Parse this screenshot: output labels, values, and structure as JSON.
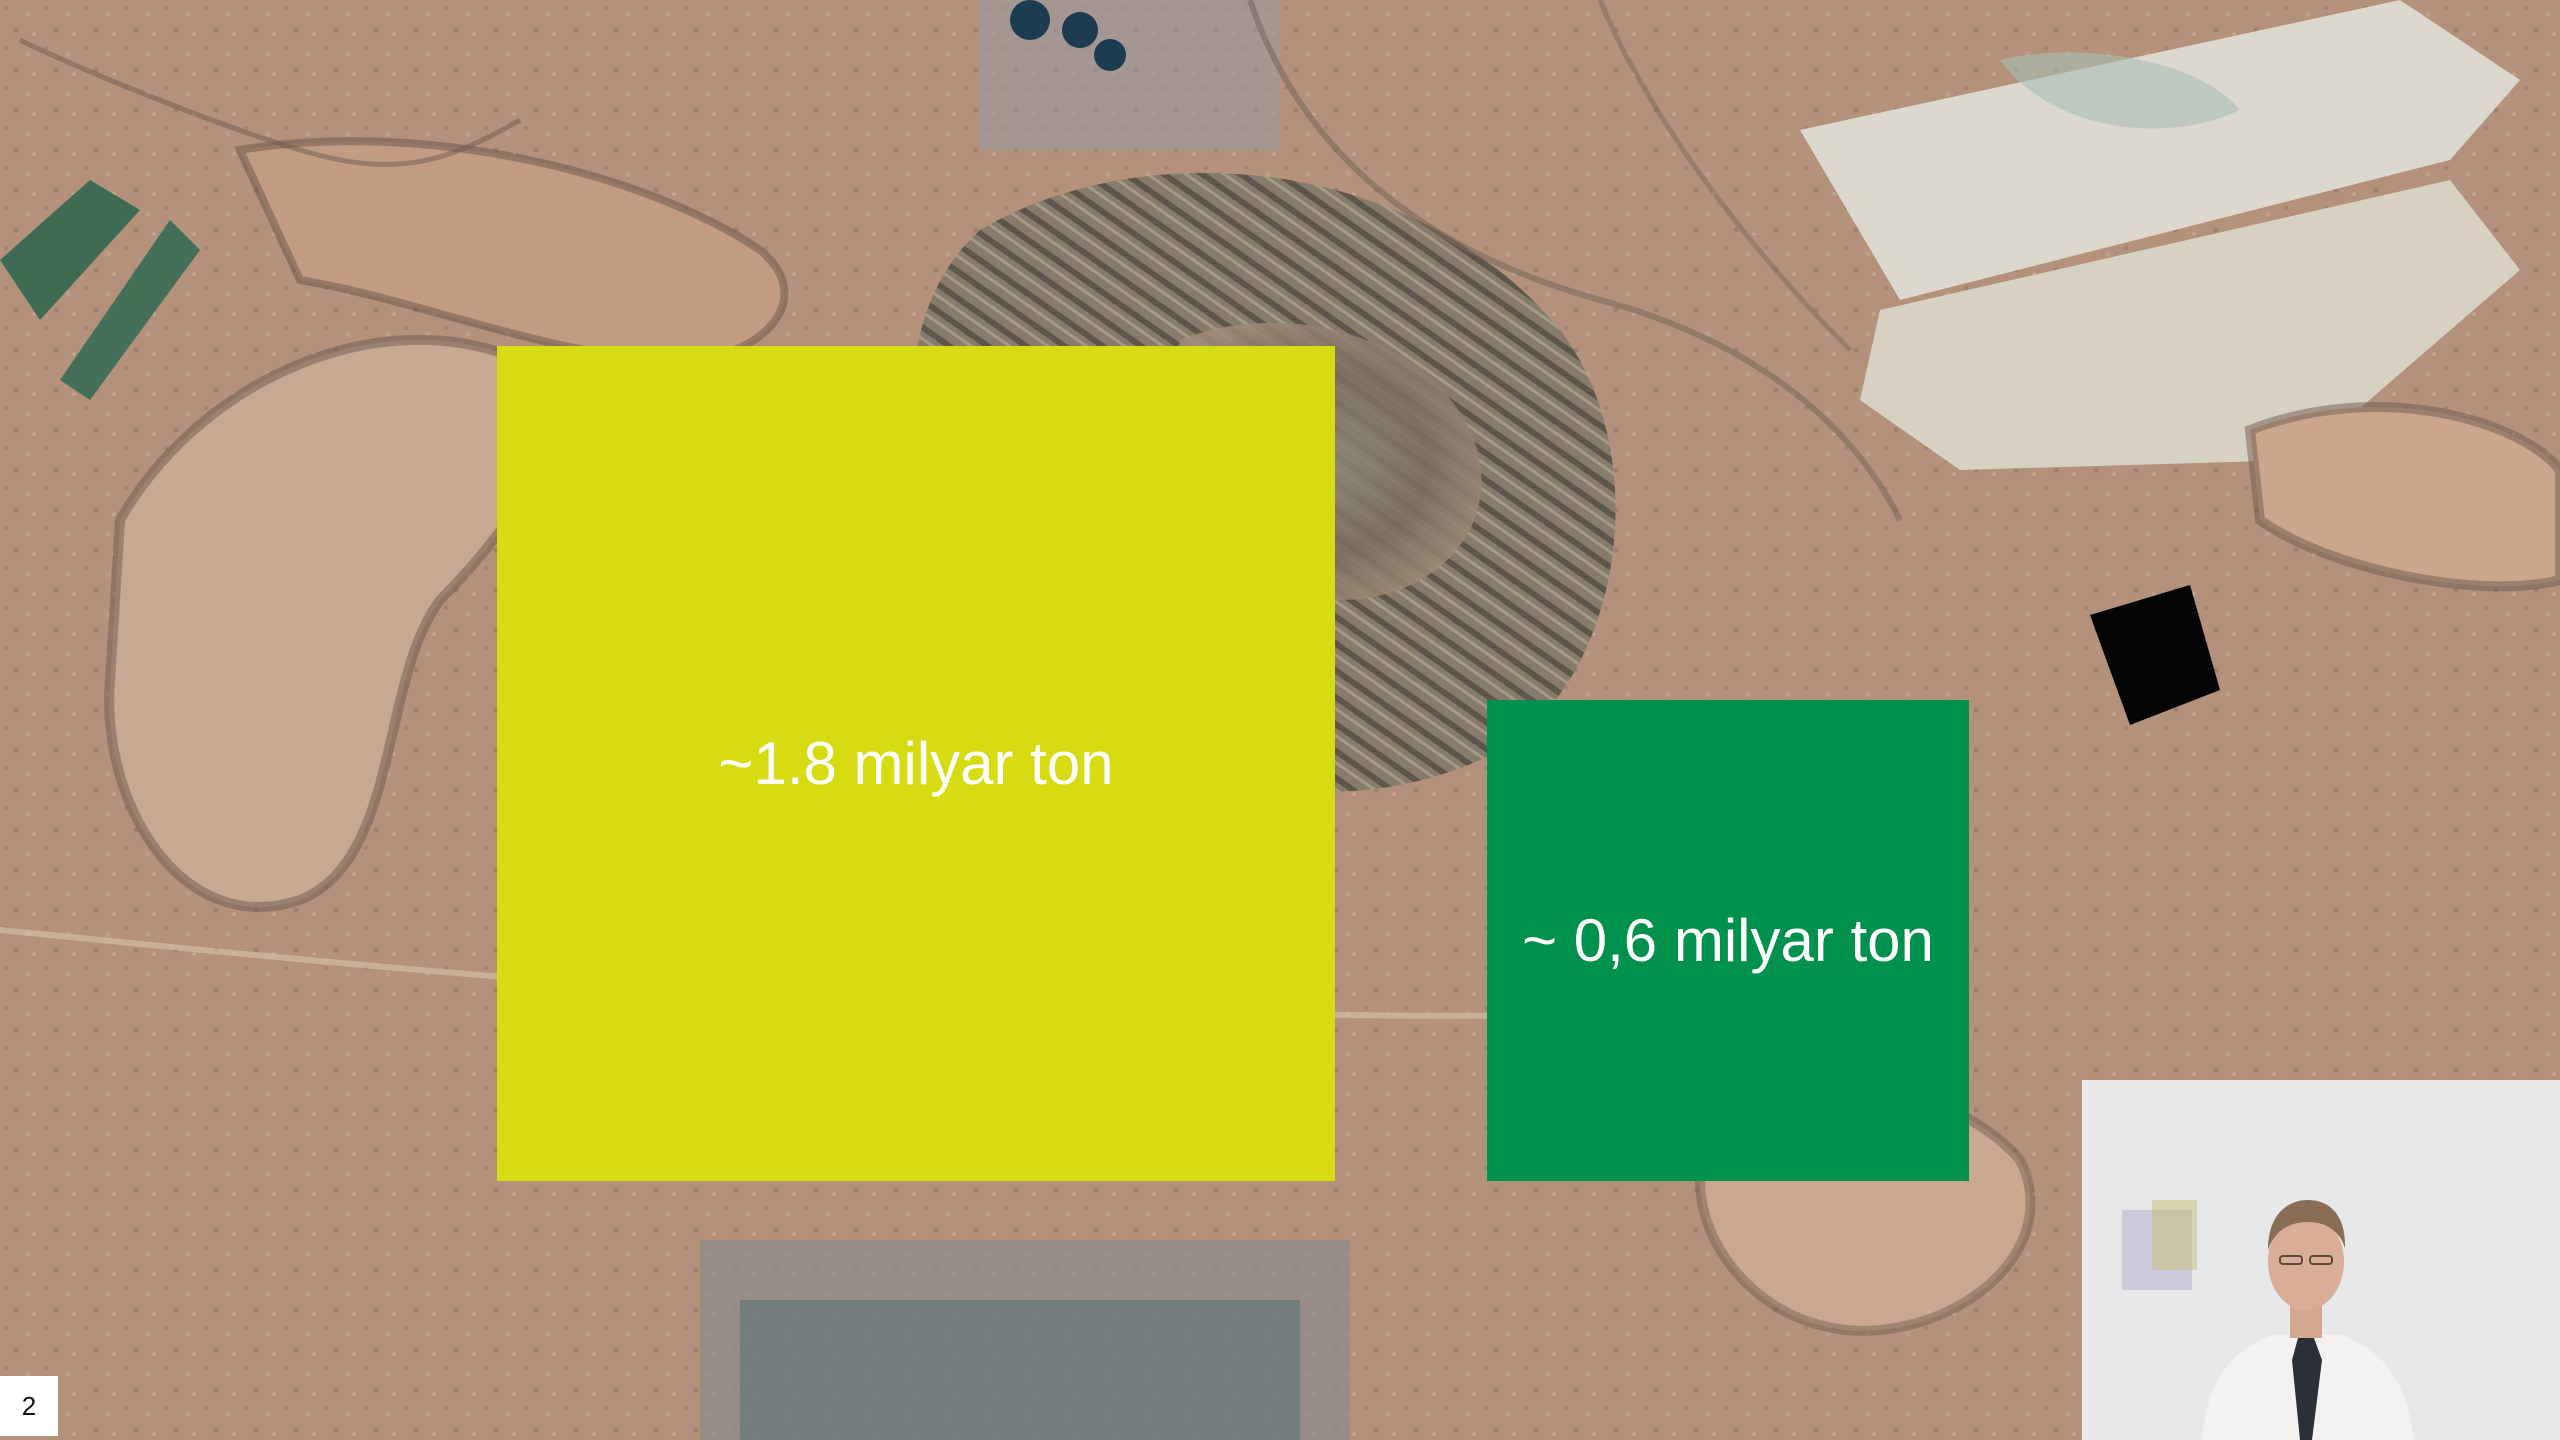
{
  "slide": {
    "page_number": "2",
    "boxes": [
      {
        "label": "~1.8 milyar ton",
        "color": "#d7dc12"
      },
      {
        "label": "~ 0,6 milyar ton",
        "color": "#00914c"
      }
    ]
  },
  "colors": {
    "terrain_base": "#b3917a",
    "terrain_light": "#d6c1ad",
    "terrain_dark": "#6e5a4e",
    "tailings": "#ddd8cd",
    "webcam_bg": "#e7e8ea"
  },
  "icons": {
    "presenter": "person-silhouette"
  }
}
